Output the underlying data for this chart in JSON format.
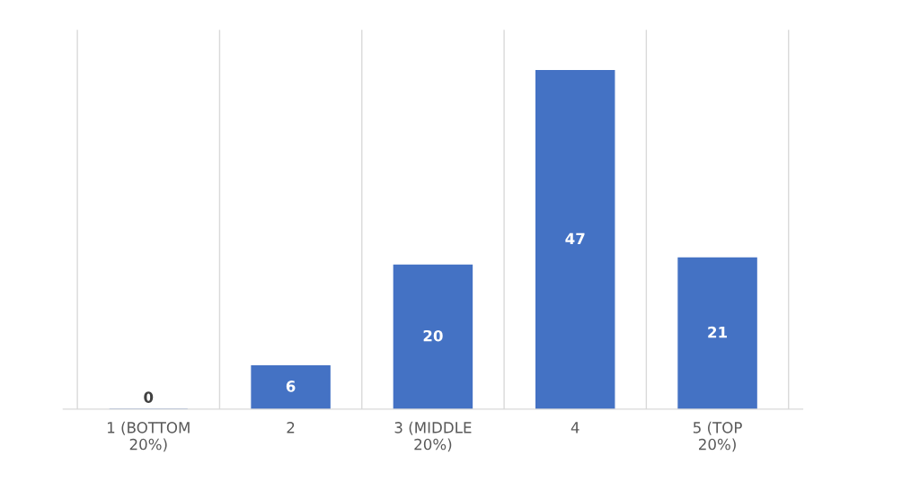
{
  "chart_data": {
    "type": "bar",
    "categories": [
      "1 (BOTTOM 20%)",
      "2",
      "3 (MIDDLE 20%)",
      "4",
      "5 (TOP 20%)"
    ],
    "values": [
      0,
      6,
      20,
      47,
      21
    ],
    "color": "#4472c4",
    "data_labels": true,
    "grid": "x",
    "legend": false
  }
}
